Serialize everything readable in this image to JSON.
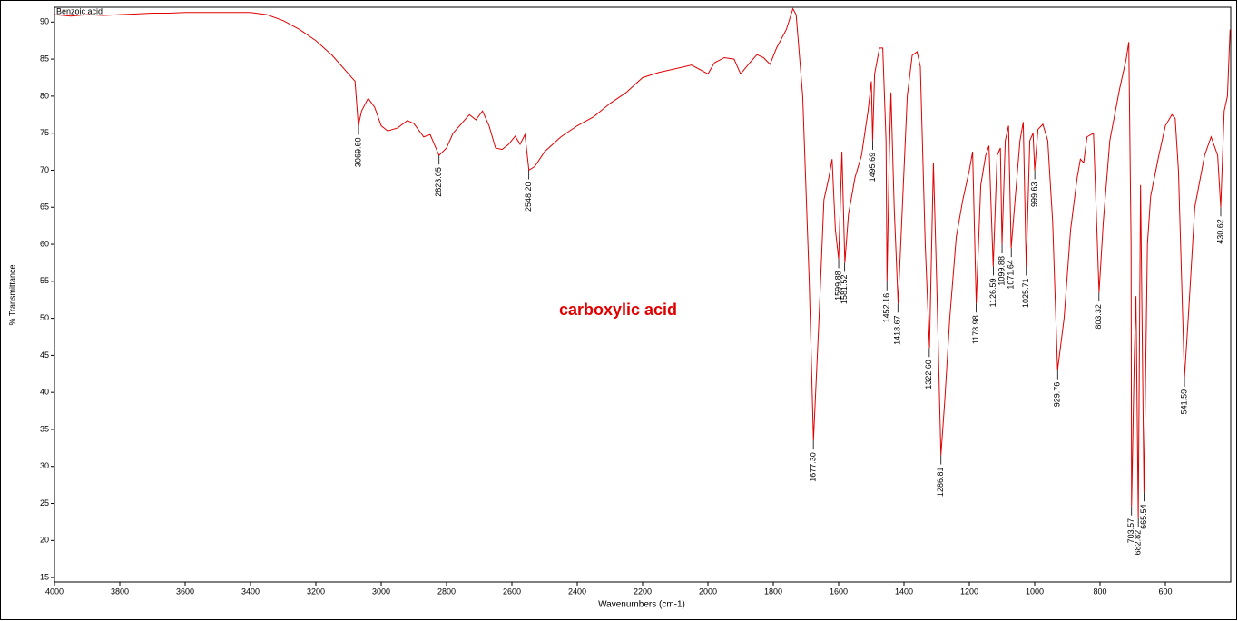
{
  "chart_data": {
    "type": "line",
    "xlabel": "Wavenumbers (cm-1)",
    "ylabel": "% Transmittance",
    "annotation": "carboxylic acid",
    "xlim": [
      4000,
      400
    ],
    "ylim": [
      14.4,
      92
    ],
    "xticks": [
      4000,
      3800,
      3600,
      3400,
      3200,
      3000,
      2800,
      2600,
      2400,
      2200,
      2000,
      1800,
      1600,
      1400,
      1200,
      1000,
      800,
      600
    ],
    "yticks": [
      15,
      20,
      25,
      30,
      35,
      40,
      45,
      50,
      55,
      60,
      65,
      70,
      75,
      80,
      85,
      90
    ],
    "x": [
      4000,
      3950,
      3900,
      3850,
      3800,
      3750,
      3700,
      3650,
      3600,
      3500,
      3400,
      3350,
      3300,
      3250,
      3200,
      3150,
      3100,
      3080,
      3070,
      3060,
      3040,
      3020,
      3000,
      2980,
      2950,
      2920,
      2900,
      2870,
      2850,
      2823,
      2800,
      2780,
      2750,
      2730,
      2710,
      2690,
      2670,
      2650,
      2630,
      2610,
      2590,
      2575,
      2560,
      2548,
      2530,
      2500,
      2450,
      2400,
      2350,
      2300,
      2250,
      2200,
      2150,
      2100,
      2050,
      2000,
      1980,
      1950,
      1920,
      1900,
      1870,
      1850,
      1830,
      1810,
      1790,
      1760,
      1740,
      1730,
      1710,
      1690,
      1677,
      1660,
      1645,
      1630,
      1620,
      1610,
      1600,
      1590,
      1581,
      1570,
      1550,
      1530,
      1510,
      1500,
      1496,
      1490,
      1475,
      1465,
      1455,
      1452,
      1445,
      1440,
      1430,
      1418,
      1405,
      1390,
      1375,
      1360,
      1350,
      1335,
      1322,
      1310,
      1300,
      1287,
      1275,
      1260,
      1240,
      1220,
      1200,
      1190,
      1179,
      1165,
      1150,
      1140,
      1127,
      1115,
      1105,
      1100,
      1090,
      1080,
      1072,
      1060,
      1045,
      1035,
      1026,
      1015,
      1005,
      1000,
      990,
      975,
      960,
      945,
      930,
      910,
      890,
      870,
      860,
      850,
      840,
      820,
      803,
      790,
      770,
      740,
      720,
      712,
      705,
      703.5,
      695,
      690,
      683,
      676,
      665.5,
      655,
      645,
      620,
      600,
      580,
      570,
      560,
      541.6,
      530,
      510,
      480,
      460,
      440,
      430.6,
      420,
      410,
      402
    ],
    "series": [
      {
        "name": "Benzoic acid",
        "color": "#e00000",
        "values": [
          91,
          90.8,
          91,
          90.9,
          91,
          91.1,
          91.2,
          91.2,
          91.3,
          91.3,
          91.3,
          91,
          90.2,
          89,
          87.5,
          85.5,
          83,
          82,
          76,
          78,
          79.7,
          78.5,
          76,
          75.3,
          75.7,
          76.7,
          76.3,
          74.5,
          74.8,
          72,
          73,
          75,
          76.5,
          77.5,
          76.8,
          78,
          76,
          73,
          72.8,
          73.5,
          74.6,
          73.5,
          74.8,
          70,
          70.5,
          72.5,
          74.5,
          76,
          77.2,
          79,
          80.5,
          82.5,
          83.2,
          83.7,
          84.2,
          83,
          84.5,
          85.2,
          85,
          83,
          84.6,
          85.6,
          85.2,
          84.3,
          86.5,
          89,
          91.8,
          91,
          80,
          55,
          33.5,
          50,
          66,
          69,
          71.5,
          62,
          58,
          72.5,
          57.5,
          64,
          69,
          72,
          78,
          82,
          74,
          83,
          86.5,
          86.5,
          74,
          55,
          72,
          80.5,
          65,
          52,
          65,
          80,
          85.5,
          86,
          84,
          60,
          46,
          71,
          55,
          31.5,
          39,
          50,
          61,
          66,
          70,
          72.5,
          52,
          68,
          72,
          73.3,
          57,
          72,
          73,
          60,
          74,
          76,
          59.5,
          66,
          74,
          76.5,
          57,
          74,
          75,
          70,
          75.5,
          76.2,
          74,
          63,
          43,
          50,
          62,
          69,
          71.5,
          71,
          74.5,
          75,
          53.5,
          63,
          74,
          81,
          85,
          87.3,
          60,
          24.6,
          45,
          53,
          23,
          68,
          26.5,
          60,
          66.5,
          72,
          76,
          77.5,
          77,
          70,
          42,
          50,
          65,
          72,
          74.5,
          72,
          65,
          78,
          80,
          89
        ]
      }
    ],
    "peaks": {
      "x": [
        3069.6,
        2823.05,
        2548.2,
        1677.3,
        1599.88,
        1581.52,
        1495.69,
        1452.16,
        1418.67,
        1322.6,
        1286.81,
        1178.98,
        1126.59,
        1099.88,
        1071.64,
        1025.71,
        999.63,
        929.76,
        803.32,
        703.57,
        682.82,
        665.54,
        541.59,
        430.62
      ],
      "y": [
        76,
        72,
        70,
        33.5,
        58,
        57.5,
        74,
        55,
        52,
        46,
        31.5,
        52,
        57,
        60,
        59.5,
        57,
        70,
        43,
        53.5,
        24.6,
        23,
        26.5,
        42,
        65
      ],
      "labels": [
        "3069.60",
        "2823.05",
        "2548.20",
        "1677.30",
        "1599.88",
        "1581.52",
        "1495.69",
        "1452.16",
        "1418.67",
        "1322.60",
        "1286.81",
        "1178.98",
        "1126.59",
        "1099.88",
        "1071.64",
        "1025.71",
        "999.63",
        "929.76",
        "803.32",
        "703.57",
        "682.82",
        "665.54",
        "541.59",
        "430.62"
      ]
    }
  }
}
